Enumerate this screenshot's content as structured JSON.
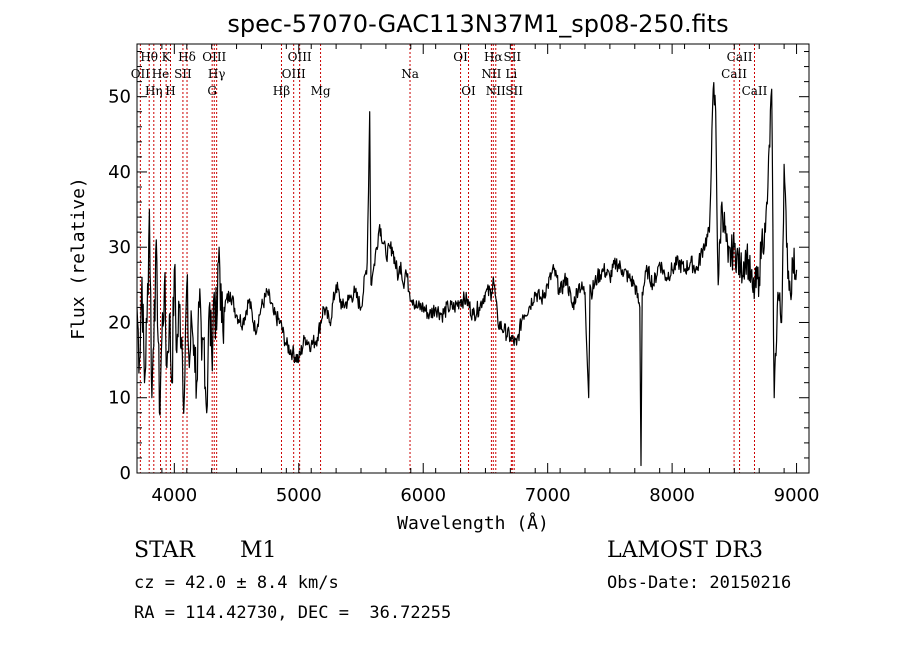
{
  "chart_data": {
    "type": "line",
    "title": "spec-57070-GAC113N37M1_sp08-250.fits",
    "xlabel": "Wavelength (Å)",
    "ylabel": "Flux (relative)",
    "xlim": [
      3700,
      9100
    ],
    "ylim": [
      0,
      57
    ],
    "xticks": [
      4000,
      5000,
      6000,
      7000,
      8000,
      9000
    ],
    "yticks": [
      0,
      10,
      20,
      30,
      40,
      50
    ],
    "series": [
      {
        "name": "flux",
        "x": [
          3700,
          3720,
          3740,
          3760,
          3780,
          3800,
          3820,
          3840,
          3860,
          3880,
          3900,
          3920,
          3940,
          3960,
          3980,
          4000,
          4020,
          4040,
          4060,
          4080,
          4100,
          4120,
          4140,
          4160,
          4180,
          4200,
          4220,
          4240,
          4260,
          4280,
          4300,
          4320,
          4340,
          4360,
          4380,
          4400,
          4450,
          4500,
          4550,
          4600,
          4650,
          4700,
          4750,
          4800,
          4850,
          4900,
          4950,
          5000,
          5050,
          5100,
          5150,
          5200,
          5250,
          5300,
          5350,
          5400,
          5450,
          5500,
          5550,
          5570,
          5580,
          5590,
          5600,
          5650,
          5700,
          5750,
          5800,
          5820,
          5840,
          5860,
          5890,
          5920,
          5950,
          6000,
          6050,
          6100,
          6150,
          6200,
          6250,
          6300,
          6350,
          6400,
          6450,
          6500,
          6550,
          6563,
          6600,
          6650,
          6700,
          6750,
          6800,
          6850,
          6900,
          6950,
          7000,
          7050,
          7100,
          7150,
          7200,
          7250,
          7300,
          7330,
          7340,
          7350,
          7400,
          7450,
          7500,
          7550,
          7600,
          7650,
          7700,
          7740,
          7750,
          7760,
          7800,
          7850,
          7900,
          7950,
          8000,
          8050,
          8100,
          8150,
          8200,
          8250,
          8300,
          8330,
          8350,
          8370,
          8400,
          8450,
          8500,
          8550,
          8600,
          8650,
          8700,
          8720,
          8750,
          8770,
          8800,
          8820,
          8850,
          8880,
          8900,
          8920,
          8950,
          8970,
          9000
        ],
        "y": [
          22,
          15,
          26,
          12,
          20,
          35,
          10,
          23,
          28,
          8,
          18,
          25,
          14,
          21,
          12,
          27,
          16,
          22,
          18,
          10,
          25,
          14,
          20,
          17,
          12,
          22,
          15,
          18,
          8,
          22,
          16,
          24,
          19,
          30,
          20,
          22,
          24,
          21,
          20,
          23,
          19,
          22,
          24,
          21,
          20,
          17,
          16,
          15,
          18,
          17,
          18,
          22,
          20,
          25,
          22,
          23,
          24,
          22,
          28,
          48,
          25,
          26,
          27,
          33,
          29,
          30,
          26,
          28,
          25,
          27,
          24,
          23,
          22,
          22,
          21,
          22,
          21,
          22,
          22,
          23,
          23,
          21,
          22,
          24,
          24,
          26,
          20,
          19,
          18,
          17,
          21,
          22,
          24,
          23,
          25,
          27,
          24,
          26,
          22,
          25,
          24,
          10,
          25,
          24,
          26,
          27,
          26,
          28,
          27,
          26,
          25,
          22,
          1,
          24,
          27,
          25,
          28,
          26,
          27,
          28,
          27,
          28,
          27,
          30,
          32,
          51,
          48,
          25,
          36,
          28,
          30,
          27,
          29,
          24,
          26,
          31,
          32,
          38,
          51,
          10,
          24,
          20,
          41,
          30,
          24,
          28,
          27
        ]
      }
    ],
    "spectral_lines": [
      {
        "name": "OII",
        "wavelength": 3727,
        "row": 2
      },
      {
        "name": "Hθ",
        "wavelength": 3798,
        "row": 1
      },
      {
        "name": "Hη",
        "wavelength": 3835,
        "row": 3
      },
      {
        "name": "He",
        "wavelength": 3889,
        "row": 2
      },
      {
        "name": "K",
        "wavelength": 3934,
        "row": 1
      },
      {
        "name": "H",
        "wavelength": 3969,
        "row": 3
      },
      {
        "name": "SII",
        "wavelength": 4069,
        "row": 2
      },
      {
        "name": "Hδ",
        "wavelength": 4102,
        "row": 1
      },
      {
        "name": "G",
        "wavelength": 4304,
        "row": 3
      },
      {
        "name": "OIII",
        "wavelength": 4321,
        "row": 1
      },
      {
        "name": "Hγ",
        "wavelength": 4340,
        "row": 2
      },
      {
        "name": "Hβ",
        "wavelength": 4861,
        "row": 3
      },
      {
        "name": "OIII",
        "wavelength": 4959,
        "row": 2
      },
      {
        "name": "OIII",
        "wavelength": 5007,
        "row": 1
      },
      {
        "name": "Mg",
        "wavelength": 5175,
        "row": 3
      },
      {
        "name": "Na",
        "wavelength": 5894,
        "row": 2
      },
      {
        "name": "OI",
        "wavelength": 6300,
        "row": 1
      },
      {
        "name": "OI",
        "wavelength": 6364,
        "row": 3
      },
      {
        "name": "NII",
        "wavelength": 6548,
        "row": 2
      },
      {
        "name": "Hα",
        "wavelength": 6563,
        "row": 1
      },
      {
        "name": "NII",
        "wavelength": 6583,
        "row": 3
      },
      {
        "name": "SII",
        "wavelength": 6716,
        "row": 1
      },
      {
        "name": "Li",
        "wavelength": 6708,
        "row": 2
      },
      {
        "name": "SII",
        "wavelength": 6731,
        "row": 3
      },
      {
        "name": "CaII",
        "wavelength": 8498,
        "row": 2
      },
      {
        "name": "CaII",
        "wavelength": 8542,
        "row": 1
      },
      {
        "name": "CaII",
        "wavelength": 8662,
        "row": 3
      }
    ]
  },
  "info": {
    "class": "STAR",
    "subclass": "M1",
    "survey": "LAMOST DR3",
    "cz": "cz = 42.0 ± 8.4 km/s",
    "obs_date": "Obs-Date: 20150216",
    "coords": "RA = 114.42730, DEC =  36.72255"
  },
  "colors": {
    "line": "#000000",
    "marker": "#cc0000"
  }
}
